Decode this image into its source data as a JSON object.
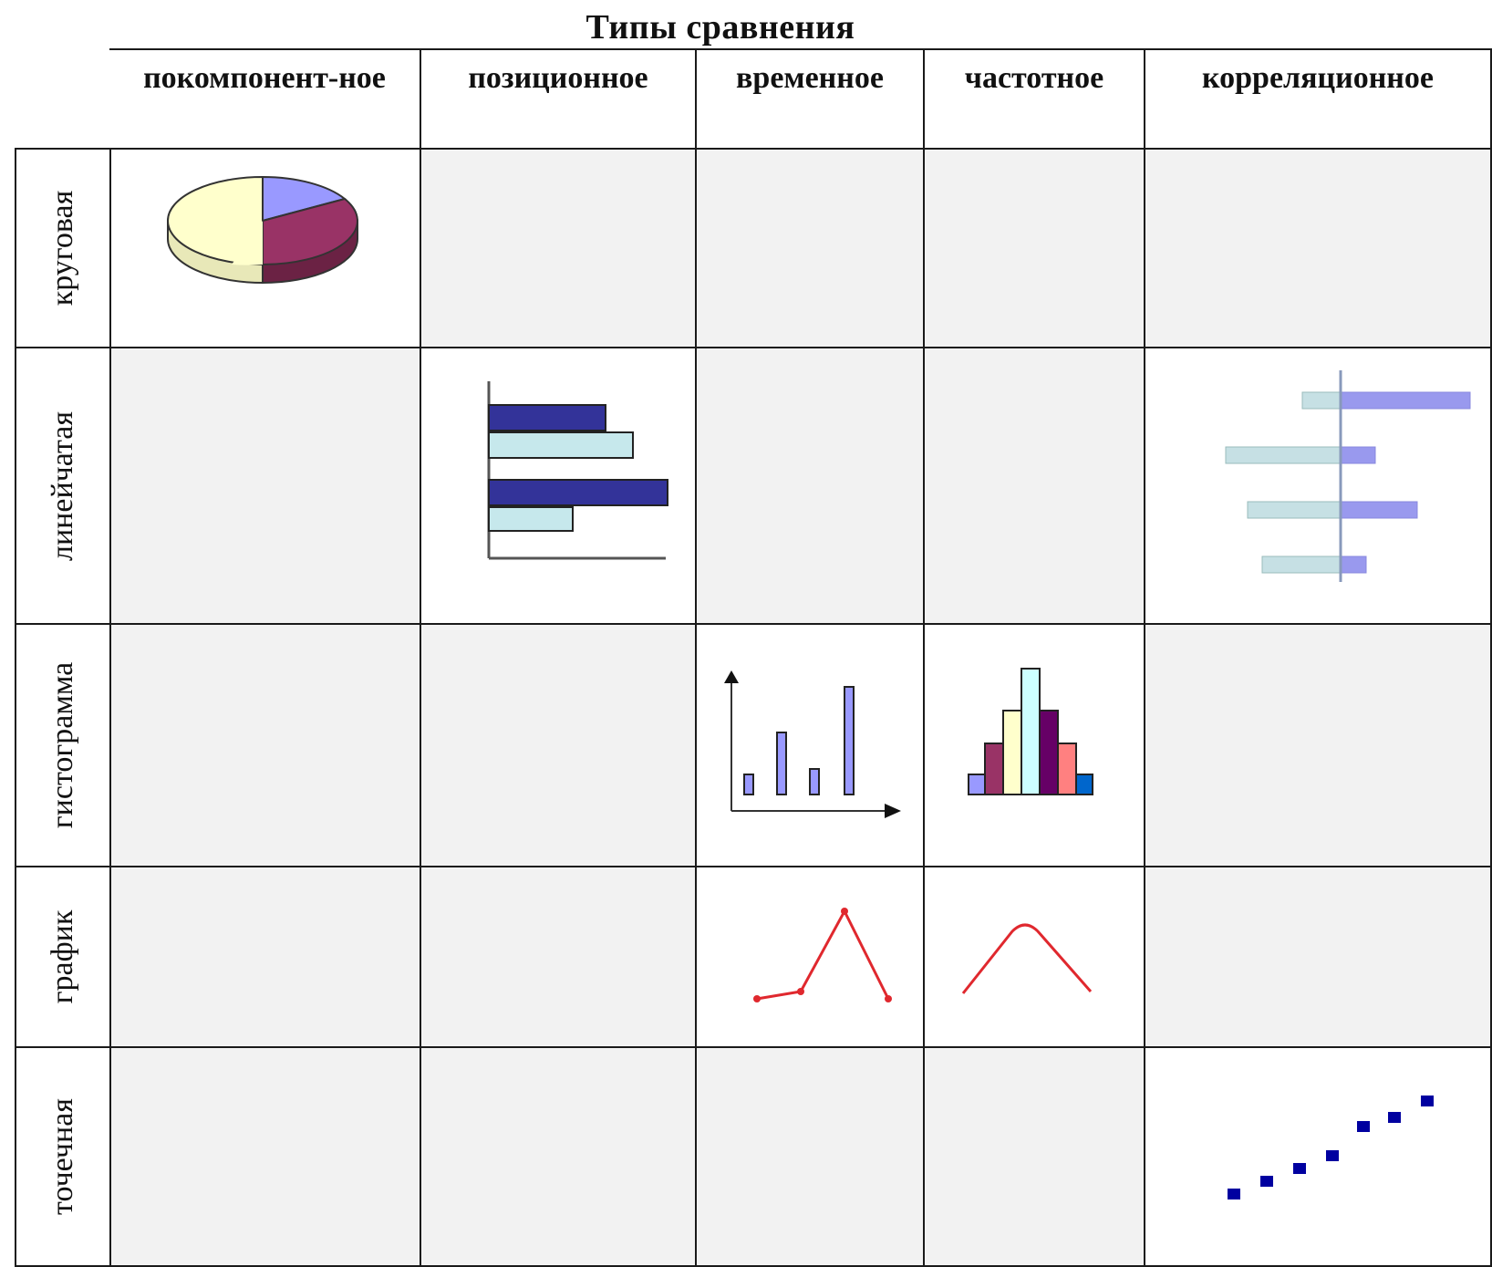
{
  "title": "Типы сравнения",
  "columns": [
    {
      "label": "покомпонент-ное"
    },
    {
      "label": "позиционное"
    },
    {
      "label": "временное"
    },
    {
      "label": "частотное"
    },
    {
      "label": "корреляционное"
    }
  ],
  "rows": [
    {
      "label": "круговая"
    },
    {
      "label": "линейчатая"
    },
    {
      "label": "гистограмма"
    },
    {
      "label": "график"
    },
    {
      "label": "точечная"
    }
  ],
  "colors": {
    "cell_gray": "#f2f2f2",
    "pie_blue": "#9999ff",
    "pie_maroon": "#993366",
    "pie_cream": "#ffffcc",
    "bar_navy": "#333399",
    "bar_light": "#c6e8ec",
    "line_red": "#e0282e",
    "scatter_blue": "#0000a0"
  }
}
